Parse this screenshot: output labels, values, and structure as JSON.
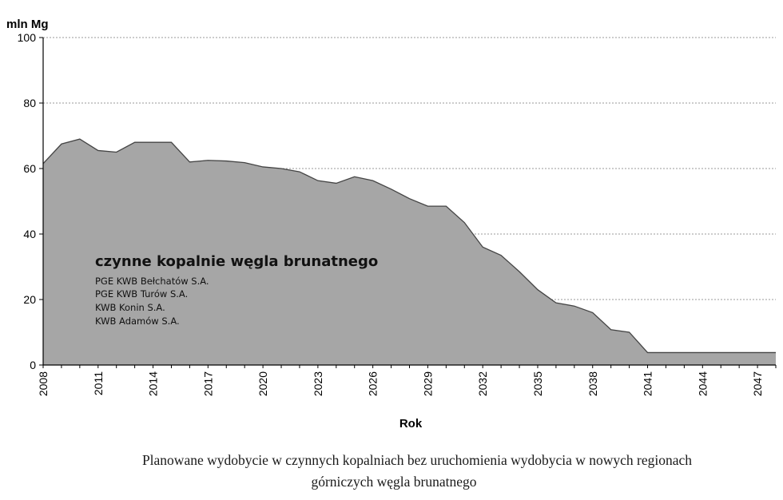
{
  "chart_data": {
    "type": "area",
    "ylabel": "mln Mg",
    "xlabel": "Rok",
    "ylim": [
      0,
      100
    ],
    "yticks": [
      0,
      20,
      40,
      60,
      80,
      100
    ],
    "xlim": [
      2008,
      2048
    ],
    "xticks": [
      2008,
      2011,
      2014,
      2017,
      2020,
      2023,
      2026,
      2029,
      2032,
      2035,
      2038,
      2041,
      2044,
      2047
    ],
    "grid": "horizontal dashed",
    "fill_color": "#a6a6a6",
    "line_color": "#444444",
    "series": [
      {
        "x": [
          2008,
          2009,
          2010,
          2011,
          2012,
          2013,
          2014,
          2015,
          2016,
          2017,
          2018,
          2019,
          2020,
          2021,
          2022,
          2023,
          2024,
          2025,
          2026,
          2027,
          2028,
          2029,
          2030,
          2031,
          2032,
          2033,
          2034,
          2035,
          2036,
          2037,
          2038,
          2039,
          2040,
          2041,
          2042,
          2043,
          2044,
          2045,
          2046,
          2047,
          2048
        ],
        "values": [
          61.5,
          67.5,
          69,
          65.5,
          65,
          68,
          68,
          68,
          62,
          62.5,
          62.3,
          61.8,
          60.5,
          60,
          59,
          56.3,
          55.5,
          57.5,
          56.3,
          53.7,
          50.8,
          48.5,
          48.5,
          43.5,
          36,
          33.5,
          28.5,
          23,
          19,
          18,
          16,
          10.8,
          10,
          3.8,
          3.8,
          3.8,
          3.8,
          3.8,
          3.8,
          3.8,
          3.8
        ]
      }
    ],
    "annotation": {
      "title": "czynne kopalnie  węgla brunatnego",
      "lines": [
        "PGE KWB Bełchatów S.A.",
        "PGE KWB Turów S.A.",
        "KWB Konin S.A.",
        "KWB Adamów S.A."
      ]
    }
  },
  "caption": {
    "line1": "Planowane wydobycie w czynnych kopalniach bez uruchomienia wydobycia w nowych regionach",
    "line2": "górniczych węgla brunatnego"
  }
}
